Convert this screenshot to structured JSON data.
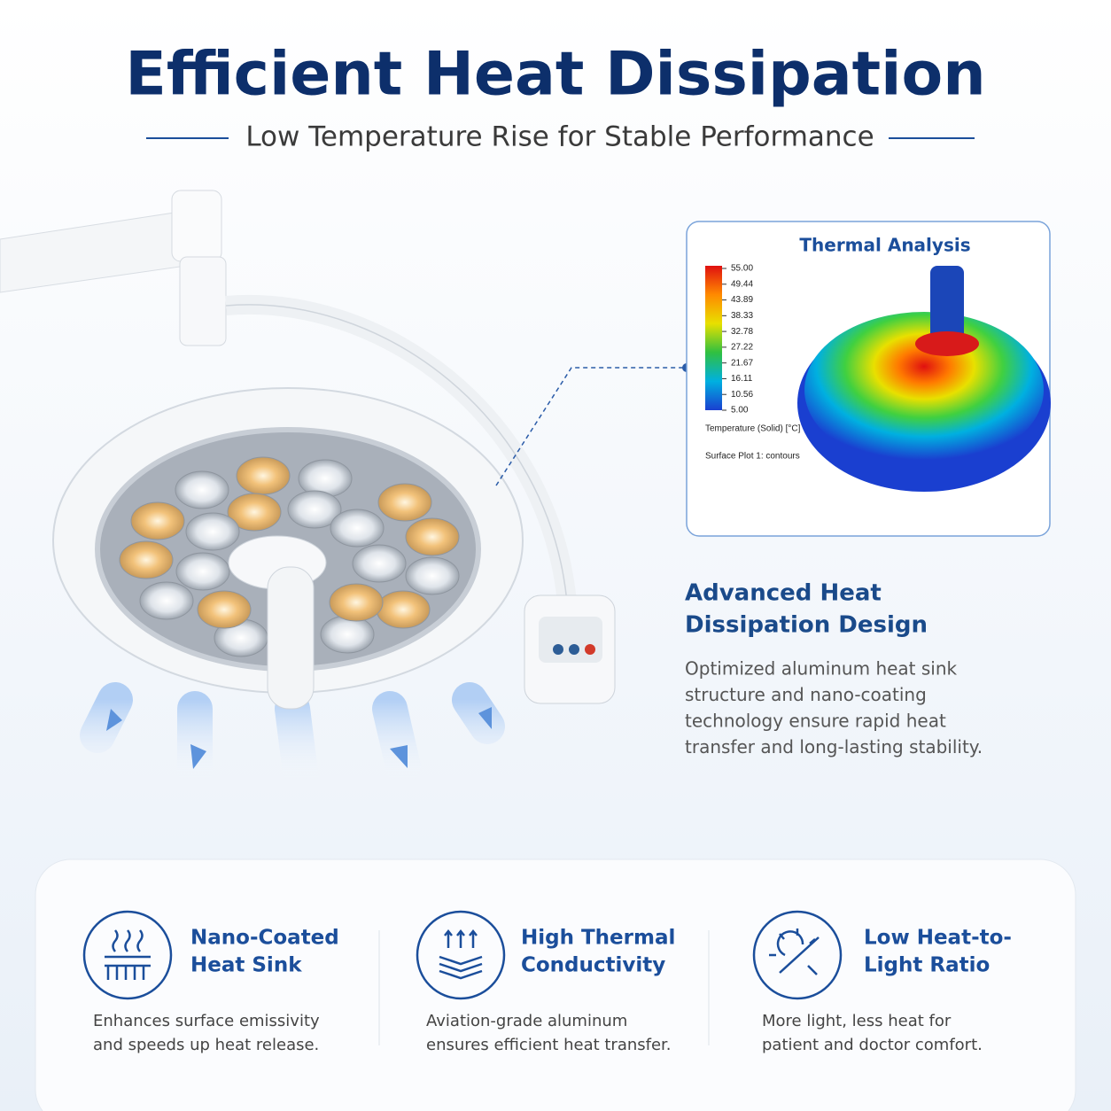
{
  "header": {
    "title": "Efficient Heat Dissipation",
    "subtitle": "Low Temperature Rise for Stable Performance"
  },
  "thermal_panel": {
    "title": "Thermal Analysis",
    "legend_values": [
      "55.00",
      "49.44",
      "43.89",
      "38.33",
      "32.78",
      "27.22",
      "21.67",
      "16.11",
      "10.56",
      "5.00"
    ],
    "quantity": "Temperature (Solid) [°C]",
    "plot_name": "Surface Plot 1: contours"
  },
  "design": {
    "heading_lines": [
      "Advanced Heat",
      "Dissipation Design"
    ],
    "body_lines": [
      "Optimized aluminum heat sink",
      "structure and nano-coating",
      "technology ensure rapid heat",
      "transfer and long-lasting stability."
    ]
  },
  "features": [
    {
      "title_lines": [
        "Nano-Coated",
        "Heat Sink"
      ],
      "description_lines": [
        "Enhances surface emissivity",
        "and speeds up heat release."
      ]
    },
    {
      "title_lines": [
        "High Thermal",
        "Conductivity"
      ],
      "description_lines": [
        "Aviation-grade aluminum",
        "ensures efficient heat transfer."
      ]
    },
    {
      "title_lines": [
        "Low Heat-to-",
        "Light Ratio"
      ],
      "description_lines": [
        "More light, less heat for",
        "patient and doctor comfort."
      ]
    }
  ]
}
